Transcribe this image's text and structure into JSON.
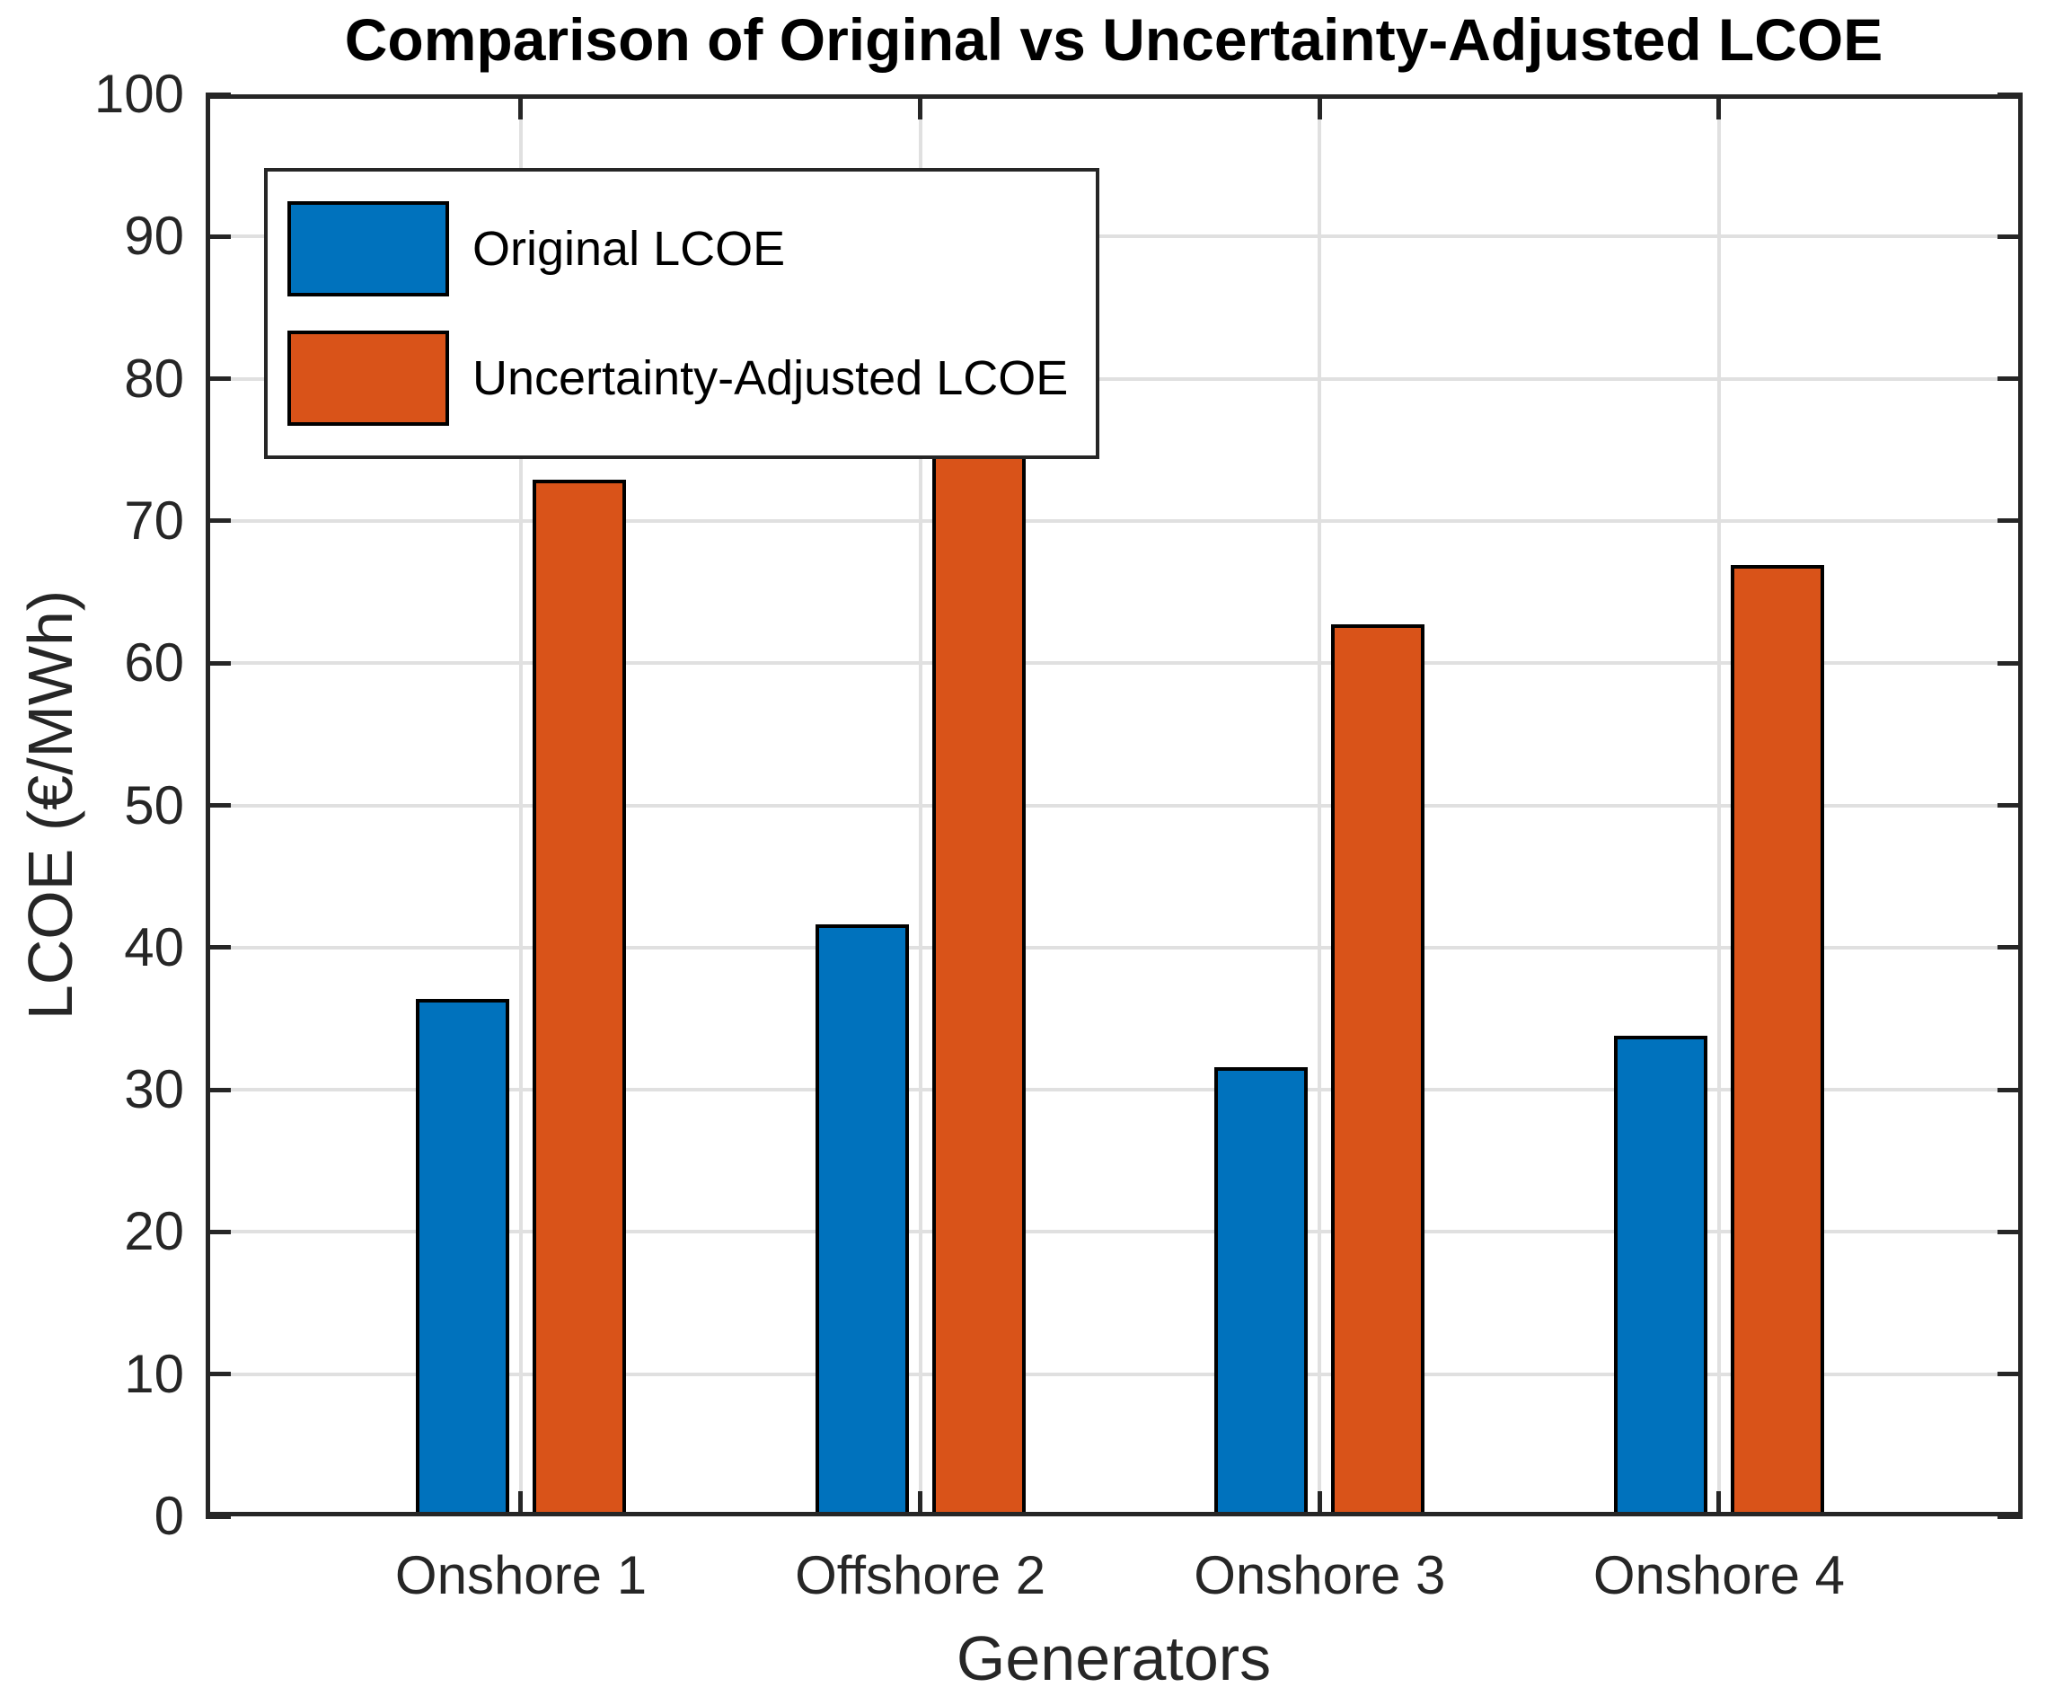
{
  "chart_data": {
    "type": "bar",
    "title": "Comparison of Original vs Uncertainty-Adjusted LCOE",
    "xlabel": "Generators",
    "ylabel": "LCOE (€/MWh)",
    "categories": [
      "Onshore 1",
      "Offshore 2",
      "Onshore 3",
      "Onshore 4"
    ],
    "series": [
      {
        "name": "Original LCOE",
        "color": "#0072BD",
        "values": [
          36.4,
          41.6,
          31.6,
          33.8
        ]
      },
      {
        "name": "Uncertainty-Adjusted LCOE",
        "color": "#D95319",
        "values": [
          72.9,
          81.9,
          62.7,
          66.9
        ]
      }
    ],
    "ylim": [
      0,
      100
    ],
    "yticks": [
      0,
      10,
      20,
      30,
      40,
      50,
      60,
      70,
      80,
      90,
      100
    ],
    "grid": true,
    "legend_position": "top-left",
    "bar_edge_color": "#000000",
    "axis_color": "#262626",
    "grid_color": "#E0E0E0"
  }
}
